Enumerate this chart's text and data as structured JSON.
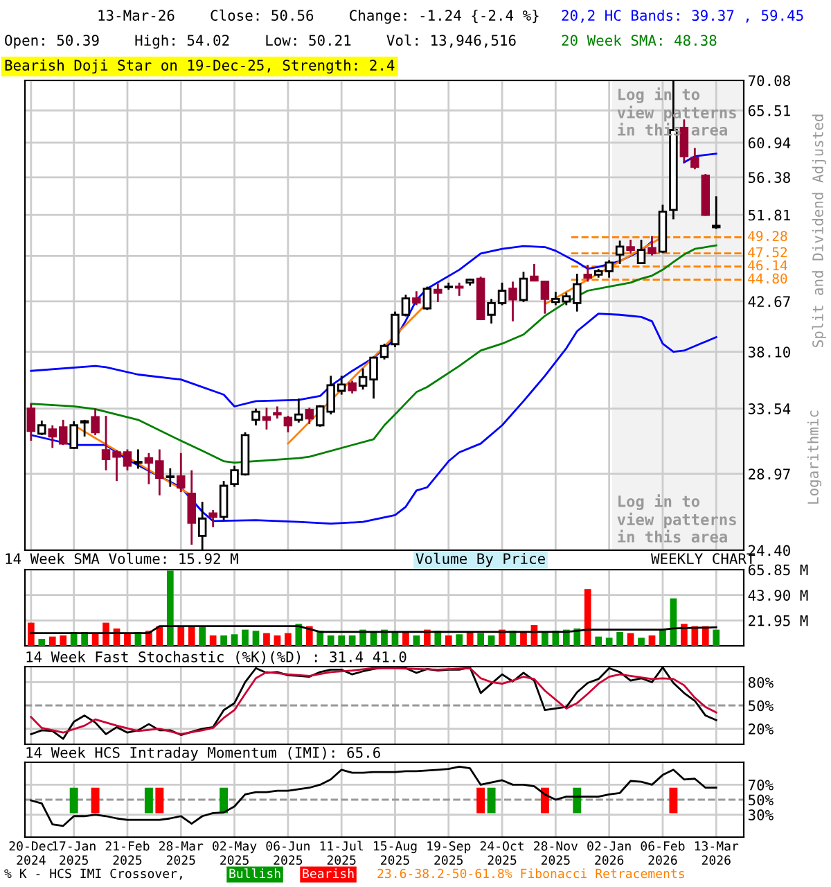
{
  "chart_data": [
    {
      "type": "candlestick",
      "title": "Bearish Doji Star on 19-Dec-25, Strength: 2.4",
      "ylabel": "Split and Dividend Adjusted",
      "x": [
        "2024-12-20",
        "2024-12-27",
        "2025-01-03",
        "2025-01-10",
        "2025-01-17",
        "2025-01-24",
        "2025-01-31",
        "2025-02-07",
        "2025-02-14",
        "2025-02-21",
        "2025-02-28",
        "2025-03-07",
        "2025-03-14",
        "2025-03-21",
        "2025-03-28",
        "2025-04-04",
        "2025-04-11",
        "2025-04-18",
        "2025-04-25",
        "2025-05-02",
        "2025-05-09",
        "2025-05-16",
        "2025-05-23",
        "2025-05-30",
        "2025-06-06",
        "2025-06-13",
        "2025-06-20",
        "2025-06-27",
        "2025-07-04",
        "2025-07-11",
        "2025-07-18",
        "2025-07-25",
        "2025-08-01",
        "2025-08-08",
        "2025-08-15",
        "2025-08-22",
        "2025-08-29",
        "2025-09-05",
        "2025-09-12",
        "2025-09-19",
        "2025-09-26",
        "2025-10-03",
        "2025-10-10",
        "2025-10-17",
        "2025-10-24",
        "2025-10-31",
        "2025-11-07",
        "2025-11-14",
        "2025-11-21",
        "2025-11-28",
        "2025-12-05",
        "2025-12-12",
        "2025-12-19",
        "2025-12-26",
        "2026-01-02",
        "2026-01-09",
        "2026-01-16",
        "2026-01-23",
        "2026-01-30",
        "2026-02-06",
        "2026-02-13",
        "2026-02-20",
        "2026-02-27",
        "2026-03-06",
        "2026-03-13"
      ],
      "ohlc": [
        [
          33.54,
          33.9,
          31.2,
          31.9
        ],
        [
          31.7,
          32.65,
          31.6,
          32.3
        ],
        [
          32.0,
          32.3,
          30.7,
          31.5
        ],
        [
          32.15,
          32.7,
          30.9,
          31.0
        ],
        [
          30.7,
          32.6,
          30.65,
          32.3
        ],
        [
          32.5,
          32.7,
          31.5,
          32.6
        ],
        [
          32.9,
          33.54,
          31.6,
          31.8
        ],
        [
          30.55,
          33.0,
          29.2,
          29.94
        ],
        [
          30.4,
          30.55,
          28.5,
          30.1
        ],
        [
          30.4,
          30.6,
          29.2,
          29.5
        ],
        [
          29.7,
          30.6,
          29.3,
          29.75
        ],
        [
          30.0,
          30.35,
          28.3,
          29.7
        ],
        [
          29.8,
          30.6,
          27.6,
          28.7
        ],
        [
          28.75,
          29.33,
          28.13,
          28.8
        ],
        [
          28.8,
          30.35,
          27.8,
          28.1
        ],
        [
          27.7,
          29.2,
          24.7,
          25.95
        ],
        [
          25.2,
          27.2,
          24.4,
          26.2
        ],
        [
          26.5,
          26.7,
          25.7,
          26.3
        ],
        [
          26.3,
          28.5,
          26.1,
          28.2
        ],
        [
          28.3,
          29.5,
          28.13,
          29.2
        ],
        [
          28.93,
          31.8,
          28.85,
          31.6
        ],
        [
          32.7,
          33.54,
          32.3,
          33.3
        ],
        [
          32.9,
          33.6,
          32.0,
          32.7
        ],
        [
          33.2,
          33.7,
          32.8,
          33.1
        ],
        [
          32.85,
          33.0,
          31.8,
          32.3
        ],
        [
          32.7,
          34.3,
          32.5,
          33.1
        ],
        [
          33.45,
          33.6,
          32.4,
          32.8
        ],
        [
          32.3,
          33.8,
          32.2,
          33.7
        ],
        [
          33.3,
          36.1,
          33.1,
          35.35
        ],
        [
          34.9,
          36.1,
          34.6,
          35.4
        ],
        [
          35.5,
          35.7,
          34.7,
          34.95
        ],
        [
          35.3,
          36.7,
          35.0,
          36.0
        ],
        [
          35.8,
          37.7,
          34.3,
          37.6
        ],
        [
          37.65,
          38.8,
          37.45,
          38.6
        ],
        [
          38.75,
          41.7,
          38.5,
          41.4
        ],
        [
          41.4,
          43.3,
          41.25,
          42.95
        ],
        [
          42.95,
          43.65,
          42.3,
          42.55
        ],
        [
          42.0,
          44.1,
          41.85,
          43.9
        ],
        [
          43.8,
          44.4,
          42.6,
          43.5
        ],
        [
          44.05,
          44.5,
          43.8,
          44.1
        ],
        [
          44.1,
          44.5,
          43.2,
          44.0
        ],
        [
          44.5,
          44.9,
          44.2,
          44.8
        ],
        [
          44.9,
          45.1,
          40.9,
          41.0
        ],
        [
          41.4,
          42.9,
          40.6,
          42.5
        ],
        [
          42.5,
          44.5,
          42.3,
          43.7
        ],
        [
          43.9,
          44.6,
          40.8,
          42.85
        ],
        [
          42.8,
          45.6,
          42.6,
          44.9
        ],
        [
          45.1,
          46.4,
          44.7,
          44.7
        ],
        [
          44.6,
          44.7,
          41.5,
          42.9
        ],
        [
          42.6,
          43.6,
          42.3,
          42.9
        ],
        [
          42.65,
          43.5,
          42.3,
          43.15
        ],
        [
          42.5,
          45.4,
          41.7,
          44.35
        ],
        [
          45.3,
          46.3,
          44.6,
          45.0
        ],
        [
          45.3,
          45.9,
          45.0,
          45.65
        ],
        [
          45.65,
          46.8,
          45.0,
          46.55
        ],
        [
          47.4,
          48.9,
          46.4,
          48.25
        ],
        [
          48.2,
          49.0,
          47.5,
          47.9
        ],
        [
          46.5,
          49.0,
          46.4,
          47.9
        ],
        [
          48.1,
          49.4,
          47.3,
          47.55
        ],
        [
          47.7,
          53.0,
          47.55,
          52.2
        ],
        [
          52.4,
          70.0,
          51.3,
          62.7
        ],
        [
          63.0,
          64.2,
          58.3,
          59.1
        ],
        [
          58.9,
          60.2,
          57.4,
          57.7
        ],
        [
          56.6,
          56.8,
          51.7,
          51.8
        ],
        [
          50.39,
          54.02,
          50.21,
          50.56
        ]
      ],
      "colors": [
        "#990033",
        "#ffffff",
        "#990033",
        "#990033",
        "#ffffff",
        "#ffffff",
        "#990033",
        "#990033",
        "#990033",
        "#990033",
        "#ffffff",
        "#990033",
        "#990033",
        "#ffffff",
        "#990033",
        "#990033",
        "#ffffff",
        "#990033",
        "#ffffff",
        "#ffffff",
        "#ffffff",
        "#ffffff",
        "#990033",
        "#990033",
        "#990033",
        "#ffffff",
        "#990033",
        "#ffffff",
        "#ffffff",
        "#ffffff",
        "#990033",
        "#ffffff",
        "#ffffff",
        "#ffffff",
        "#ffffff",
        "#ffffff",
        "#990033",
        "#ffffff",
        "#990033",
        "#ffffff",
        "#990033",
        "#ffffff",
        "#990033",
        "#ffffff",
        "#ffffff",
        "#990033",
        "#ffffff",
        "#990033",
        "#990033",
        "#ffffff",
        "#ffffff",
        "#ffffff",
        "#990033",
        "#ffffff",
        "#ffffff",
        "#ffffff",
        "#990033",
        "#ffffff",
        "#990033",
        "#ffffff",
        "#ffffff",
        "#990033",
        "#990033",
        "#990033",
        "#ffffff"
      ],
      "series": [
        {
          "type": "line",
          "name": "20,2 HC Bands: 39.37 , 59.45",
          "color": "#0000ff",
          "x": [
            "2024-12-20",
            "2025-01-31",
            "2025-02-07",
            "2025-02-28",
            "2025-03-28",
            "2025-04-25",
            "2025-05-02",
            "2025-05-16",
            "2025-06-13",
            "2025-06-27",
            "2025-07-04",
            "2025-07-18",
            "2025-08-01",
            "2025-08-15",
            "2025-08-22",
            "2025-08-29",
            "2025-09-05",
            "2025-09-26",
            "2025-10-10",
            "2025-10-24",
            "2025-11-07",
            "2025-11-21",
            "2025-11-28",
            "2025-12-12",
            "2025-12-19",
            "2025-12-26",
            "2026-01-09",
            "2026-01-23",
            "2026-01-30",
            "2026-02-06",
            "2026-02-13",
            "2026-02-20",
            "2026-02-27",
            "2026-03-13"
          ],
          "values": [
            36.5,
            36.9,
            36.8,
            36.2,
            35.8,
            34.6,
            33.7,
            34.1,
            34.2,
            34.5,
            35.3,
            36.5,
            37.6,
            39.2,
            40.85,
            42.8,
            43.9,
            45.8,
            47.5,
            48.0,
            48.3,
            48.2,
            47.8,
            46.6,
            45.9,
            46.1,
            46.7,
            47.8,
            48.8,
            null,
            null,
            58.3,
            59.1,
            59.45
          ]
        },
        {
          "type": "line",
          "color": "#0000ff",
          "x": [
            "2024-12-20",
            "2025-01-17",
            "2025-02-07",
            "2025-02-21",
            "2025-03-14",
            "2025-03-28",
            "2025-04-11",
            "2025-04-18",
            "2025-05-16",
            "2025-06-13",
            "2025-07-04",
            "2025-07-25",
            "2025-08-15",
            "2025-08-22",
            "2025-08-29",
            "2025-09-05",
            "2025-09-19",
            "2025-09-26",
            "2025-10-10",
            "2025-10-24",
            "2025-11-07",
            "2025-11-21",
            "2025-12-05",
            "2025-12-12",
            "2025-12-26",
            "2026-01-09",
            "2026-01-23",
            "2026-01-30",
            "2026-02-06",
            "2026-02-13",
            "2026-02-20",
            "2026-03-13"
          ],
          "values": [
            31.6,
            30.9,
            30.9,
            29.9,
            28.8,
            28.1,
            26.6,
            26.05,
            26.1,
            26.0,
            25.9,
            26.0,
            26.4,
            26.9,
            27.9,
            28.1,
            29.8,
            30.4,
            31.0,
            32.3,
            34.1,
            36.1,
            38.4,
            39.9,
            41.5,
            41.4,
            41.2,
            40.8,
            38.8,
            38.1,
            38.2,
            39.37
          ]
        },
        {
          "type": "line",
          "name": "20 Week SMA: 48.38",
          "color": "#008000",
          "x": [
            "2024-12-20",
            "2025-01-17",
            "2025-01-31",
            "2025-02-28",
            "2025-03-28",
            "2025-04-11",
            "2025-04-25",
            "2025-05-02",
            "2025-06-13",
            "2025-06-20",
            "2025-07-18",
            "2025-08-01",
            "2025-08-08",
            "2025-08-15",
            "2025-08-29",
            "2025-09-05",
            "2025-09-26",
            "2025-10-10",
            "2025-10-24",
            "2025-11-07",
            "2025-11-21",
            "2025-12-05",
            "2025-12-19",
            "2026-01-02",
            "2026-01-16",
            "2026-01-23",
            "2026-01-30",
            "2026-02-06",
            "2026-02-13",
            "2026-02-20",
            "2026-02-27",
            "2026-03-13"
          ],
          "values": [
            33.9,
            33.7,
            33.5,
            32.7,
            31.2,
            30.5,
            29.8,
            29.7,
            30.0,
            30.1,
            30.9,
            31.3,
            32.3,
            33.1,
            34.8,
            35.2,
            36.9,
            38.2,
            38.8,
            39.6,
            41.3,
            42.6,
            43.7,
            44.1,
            44.5,
            44.9,
            45.2,
            45.8,
            46.6,
            47.4,
            48.0,
            48.38
          ]
        },
        {
          "type": "line",
          "color": "#ff8000",
          "x": [
            "2025-01-17",
            "2025-04-04"
          ],
          "values": [
            32.3,
            27.6
          ]
        },
        {
          "type": "line",
          "color": "#ff8000",
          "x": [
            "2025-06-06",
            "2025-09-05"
          ],
          "values": [
            31.0,
            42.5
          ]
        },
        {
          "type": "line",
          "color": "#ff8000",
          "x": [
            "2025-11-21",
            "2026-02-06"
          ],
          "values": [
            42.4,
            49.3
          ]
        }
      ],
      "log": true,
      "xlim": [
        "2024-12-16",
        "2026-03-31"
      ],
      "ylim": [
        24.4,
        70.08
      ],
      "xticks": [
        {
          "value": "2024-12-20",
          "label": null
        },
        {
          "value": "2025-01-17",
          "label": null
        },
        {
          "value": "2025-02-21",
          "label": null
        },
        {
          "value": "2025-03-28",
          "label": null
        },
        {
          "value": "2025-05-02",
          "label": null
        },
        {
          "value": "2025-06-06",
          "label": null
        },
        {
          "value": "2025-07-11",
          "label": null
        },
        {
          "value": "2025-08-15",
          "label": null
        },
        {
          "value": "2025-09-19",
          "label": null
        },
        {
          "value": "2025-10-24",
          "label": null
        },
        {
          "value": "2025-11-28",
          "label": null
        },
        {
          "value": "2026-01-02",
          "label": null
        },
        {
          "value": "2026-02-06",
          "label": null
        },
        {
          "value": "2026-03-13",
          "label": null
        }
      ],
      "yticks": [
        {
          "value": 24.4,
          "label": "24.40"
        },
        28.97,
        33.54,
        {
          "value": 38.1,
          "label": "38.10"
        },
        42.67,
        {
          "value": 47.24,
          "label": null
        },
        51.81,
        56.38,
        60.94,
        65.51,
        70.08
      ],
      "tick_labels": "y",
      "grid": true,
      "ref_lines": [
        {
          "axis": "y",
          "value": 49.28,
          "label": "49.28",
          "color": "#ff8000",
          "line_style": "dashed"
        },
        {
          "axis": "y",
          "value": 47.52,
          "label": "47.52",
          "color": "#ff8000",
          "line_style": "dashed"
        },
        {
          "axis": "y",
          "value": 46.14,
          "label": "46.14",
          "color": "#ff8000",
          "line_style": "dashed"
        },
        {
          "axis": "y",
          "value": 44.8,
          "label": "44.80",
          "color": "#ff8000",
          "line_style": "dashed"
        }
      ],
      "bands": [
        {
          "axis": "x",
          "from": "2026-01-04",
          "to": "2026-03-31",
          "label": "Log in to\nview patterns\nin this area",
          "color": "#f2f2f2"
        }
      ],
      "annotations": [
        "13-Mar-26    Close: 50.56    Change: -1.24 {-2.4 %}",
        "Open: 50.39    High: 54.02    Low: 50.21    Vol: 13,946,516",
        "Logarithmic",
        "23.6-38.2-50-61.8% Fibonacci Retracements"
      ]
    },
    {
      "type": "bar",
      "x": [
        "2024-12-20",
        "2024-12-27",
        "2025-01-03",
        "2025-01-10",
        "2025-01-17",
        "2025-01-24",
        "2025-01-31",
        "2025-02-07",
        "2025-02-14",
        "2025-02-21",
        "2025-02-28",
        "2025-03-07",
        "2025-03-14",
        "2025-03-21",
        "2025-03-28",
        "2025-04-04",
        "2025-04-11",
        "2025-04-18",
        "2025-04-25",
        "2025-05-02",
        "2025-05-09",
        "2025-05-16",
        "2025-05-23",
        "2025-05-30",
        "2025-06-06",
        "2025-06-13",
        "2025-06-20",
        "2025-06-27",
        "2025-07-04",
        "2025-07-11",
        "2025-07-18",
        "2025-07-25",
        "2025-08-01",
        "2025-08-08",
        "2025-08-15",
        "2025-08-22",
        "2025-08-29",
        "2025-09-05",
        "2025-09-12",
        "2025-09-19",
        "2025-09-26",
        "2025-10-03",
        "2025-10-10",
        "2025-10-17",
        "2025-10-24",
        "2025-10-31",
        "2025-11-07",
        "2025-11-14",
        "2025-11-21",
        "2025-11-28",
        "2025-12-05",
        "2025-12-12",
        "2025-12-19",
        "2025-12-26",
        "2026-01-02",
        "2026-01-09",
        "2026-01-16",
        "2026-01-23",
        "2026-01-30",
        "2026-02-06",
        "2026-02-13",
        "2026-02-20",
        "2026-02-27",
        "2026-03-06",
        "2026-03-13"
      ],
      "values": [
        20,
        6,
        8,
        9,
        12,
        12,
        11,
        20,
        15,
        11,
        12,
        13,
        17,
        65,
        17,
        17,
        17,
        9,
        9,
        10,
        14,
        13,
        11,
        9,
        11,
        19,
        17,
        13,
        9,
        9,
        9,
        14,
        12,
        14,
        12,
        12,
        9,
        14,
        13,
        9,
        10,
        12,
        11,
        9,
        14,
        13,
        12,
        18,
        12,
        13,
        14,
        15,
        49,
        8,
        7,
        12,
        11,
        7,
        9,
        14,
        41,
        19,
        17,
        17,
        14
      ],
      "colors": [
        "#ff0000",
        "#009900",
        "#ff0000",
        "#ff0000",
        "#009900",
        "#009900",
        "#ff0000",
        "#ff0000",
        "#ff0000",
        "#ff0000",
        "#009900",
        "#ff0000",
        "#ff0000",
        "#009900",
        "#ff0000",
        "#ff0000",
        "#009900",
        "#ff0000",
        "#009900",
        "#009900",
        "#009900",
        "#009900",
        "#ff0000",
        "#ff0000",
        "#ff0000",
        "#009900",
        "#ff0000",
        "#009900",
        "#009900",
        "#009900",
        "#009900",
        "#009900",
        "#009900",
        "#009900",
        "#009900",
        "#ff0000",
        "#009900",
        "#ff0000",
        "#009900",
        "#ff0000",
        "#009900",
        "#ff0000",
        "#009900",
        "#009900",
        "#ff0000",
        "#009900",
        "#ff0000",
        "#ff0000",
        "#009900",
        "#009900",
        "#009900",
        "#009900",
        "#ff0000",
        "#009900",
        "#009900",
        "#009900",
        "#ff0000",
        "#009900",
        "#ff0000",
        "#009900",
        "#009900",
        "#ff0000",
        "#ff0000",
        "#ff0000",
        "#009900"
      ],
      "series": [
        {
          "type": "line",
          "name": "14 Week SMA Volume: 15.92 M",
          "color": "#000000",
          "x": [
            "2024-12-20",
            "2025-03-07",
            "2025-03-14",
            "2025-04-11",
            "2025-06-06",
            "2025-06-13",
            "2025-06-27",
            "2025-12-05",
            "2025-12-12",
            "2025-12-19",
            "2026-02-06",
            "2026-02-13",
            "2026-03-13"
          ],
          "values": [
            11,
            11,
            17,
            17,
            17,
            17,
            12,
            12,
            13,
            14,
            14,
            15,
            16
          ]
        }
      ],
      "xlim": [
        "2024-12-16",
        "2026-03-31"
      ],
      "ylim": [
        0,
        65.85
      ],
      "xticks": [
        {
          "value": "2024-12-20",
          "label": null
        },
        {
          "value": "2025-01-17",
          "label": null
        },
        {
          "value": "2025-02-21",
          "label": null
        },
        {
          "value": "2025-03-28",
          "label": null
        },
        {
          "value": "2025-05-02",
          "label": null
        },
        {
          "value": "2025-06-06",
          "label": null
        },
        {
          "value": "2025-07-11",
          "label": null
        },
        {
          "value": "2025-08-15",
          "label": null
        },
        {
          "value": "2025-09-19",
          "label": null
        },
        {
          "value": "2025-10-24",
          "label": null
        },
        {
          "value": "2025-11-28",
          "label": null
        },
        {
          "value": "2026-01-02",
          "label": null
        },
        {
          "value": "2026-02-06",
          "label": null
        },
        {
          "value": "2026-03-13",
          "label": null
        }
      ],
      "yticks": [
        {
          "value": 21.95,
          "label": "21.95 M"
        },
        {
          "value": 43.9,
          "label": "43.90 M"
        },
        {
          "value": 65.85,
          "label": "65.85 M"
        }
      ],
      "tick_labels": "y",
      "grid": true,
      "annotations": [
        "Volume By Price",
        "WEEKLY CHART"
      ]
    },
    {
      "type": "line",
      "title": "14 Week Fast Stochastic (%K)(%D) : 31.4 41.0",
      "x": [
        "2024-12-20",
        "2024-12-27",
        "2025-01-03",
        "2025-01-10",
        "2025-01-17",
        "2025-01-24",
        "2025-01-31",
        "2025-02-07",
        "2025-02-14",
        "2025-02-21",
        "2025-02-28",
        "2025-03-07",
        "2025-03-14",
        "2025-03-21",
        "2025-03-28",
        "2025-04-04",
        "2025-04-11",
        "2025-04-18",
        "2025-04-25",
        "2025-05-02",
        "2025-05-09",
        "2025-05-16",
        "2025-05-23",
        "2025-05-30",
        "2025-06-06",
        "2025-06-13",
        "2025-06-20",
        "2025-06-27",
        "2025-07-04",
        "2025-07-11",
        "2025-07-18",
        "2025-07-25",
        "2025-08-01",
        "2025-08-08",
        "2025-08-15",
        "2025-08-22",
        "2025-08-29",
        "2025-09-05",
        "2025-09-12",
        "2025-09-19",
        "2025-09-26",
        "2025-10-03",
        "2025-10-10",
        "2025-10-17",
        "2025-10-24",
        "2025-10-31",
        "2025-11-07",
        "2025-11-14",
        "2025-11-21",
        "2025-11-28",
        "2025-12-05",
        "2025-12-12",
        "2025-12-19",
        "2025-12-26",
        "2026-01-02",
        "2026-01-09",
        "2026-01-16",
        "2026-01-23",
        "2026-01-30",
        "2026-02-06",
        "2026-02-13",
        "2026-02-20",
        "2026-02-27",
        "2026-03-06",
        "2026-03-13"
      ],
      "series": [
        {
          "color": "#000000",
          "values": [
            13,
            18,
            17,
            7,
            29,
            37,
            28,
            13,
            22,
            15,
            18,
            26,
            18,
            18,
            12,
            16,
            20,
            22,
            44,
            53,
            80,
            98,
            92,
            93,
            89,
            88,
            87,
            93,
            96,
            96,
            90,
            94,
            97,
            99,
            99,
            98,
            92,
            97,
            95,
            96,
            96,
            99,
            66,
            78,
            90,
            81,
            92,
            82,
            44,
            46,
            48,
            67,
            79,
            84,
            98,
            93,
            82,
            85,
            80,
            99,
            79,
            66,
            56,
            37,
            31
          ]
        },
        {
          "color": "#cc0033",
          "x": [
            "2024-12-20",
            "2024-12-27",
            "2025-01-10",
            "2025-01-24",
            "2025-01-31",
            "2025-02-14",
            "2025-02-28",
            "2025-03-14",
            "2025-03-28",
            "2025-04-11",
            "2025-04-18",
            "2025-04-25",
            "2025-05-02",
            "2025-05-09",
            "2025-05-16",
            "2025-05-23",
            "2025-06-06",
            "2025-06-20",
            "2025-07-04",
            "2025-07-18",
            "2025-08-01",
            "2025-08-15",
            "2025-08-29",
            "2025-09-12",
            "2025-10-03",
            "2025-10-10",
            "2025-10-17",
            "2025-10-24",
            "2025-10-31",
            "2025-11-07",
            "2025-11-14",
            "2025-11-21",
            "2025-12-05",
            "2025-12-12",
            "2025-12-19",
            "2025-12-26",
            "2026-01-02",
            "2026-01-09",
            "2026-01-16",
            "2026-01-30",
            "2026-02-06",
            "2026-02-13",
            "2026-02-20",
            "2026-02-27",
            "2026-03-06",
            "2026-03-13"
          ],
          "values": [
            35,
            21,
            15,
            24,
            32,
            24,
            17,
            20,
            13,
            18,
            21,
            34,
            44,
            65,
            85,
            93,
            90,
            88,
            93,
            95,
            98,
            98,
            97,
            96,
            98,
            85,
            80,
            78,
            82,
            87,
            84,
            69,
            46,
            53,
            65,
            78,
            87,
            90,
            88,
            84,
            85,
            84,
            76,
            60,
            48,
            41.0
          ]
        }
      ],
      "xlim": [
        "2024-12-16",
        "2026-03-31"
      ],
      "ylim": [
        0,
        100
      ],
      "xticks": [
        {
          "value": "2024-12-20",
          "label": null
        },
        {
          "value": "2025-01-17",
          "label": null
        },
        {
          "value": "2025-02-21",
          "label": null
        },
        {
          "value": "2025-03-28",
          "label": null
        },
        {
          "value": "2025-05-02",
          "label": null
        },
        {
          "value": "2025-06-06",
          "label": null
        },
        {
          "value": "2025-07-11",
          "label": null
        },
        {
          "value": "2025-08-15",
          "label": null
        },
        {
          "value": "2025-09-19",
          "label": null
        },
        {
          "value": "2025-10-24",
          "label": null
        },
        {
          "value": "2025-11-28",
          "label": null
        },
        {
          "value": "2026-01-02",
          "label": null
        },
        {
          "value": "2026-02-06",
          "label": null
        },
        {
          "value": "2026-03-13",
          "label": null
        }
      ],
      "yticks": [
        {
          "value": 20,
          "label": "20%"
        },
        {
          "value": 50,
          "label": "50%"
        },
        {
          "value": 80,
          "label": "80%"
        }
      ],
      "tick_labels": "y",
      "grid": true,
      "ref_lines": [
        {
          "axis": "y",
          "value": 50,
          "color": "#999999",
          "line_style": "dashed"
        }
      ]
    },
    {
      "type": "line",
      "title": "14 Week HCS Intraday Momentum (IMI): 65.6",
      "x": [
        "2024-12-20",
        "2024-12-27",
        "2025-01-03",
        "2025-01-10",
        "2025-01-17",
        "2025-01-24",
        "2025-01-31",
        "2025-02-07",
        "2025-02-14",
        "2025-02-21",
        "2025-02-28",
        "2025-03-07",
        "2025-03-14",
        "2025-03-21",
        "2025-03-28",
        "2025-04-04",
        "2025-04-11",
        "2025-04-18",
        "2025-04-25",
        "2025-05-02",
        "2025-05-09",
        "2025-05-16",
        "2025-05-23",
        "2025-05-30",
        "2025-06-06",
        "2025-06-13",
        "2025-06-20",
        "2025-06-27",
        "2025-07-04",
        "2025-07-11",
        "2025-07-18",
        "2025-07-25",
        "2025-08-01",
        "2025-08-08",
        "2025-08-15",
        "2025-08-22",
        "2025-08-29",
        "2025-09-05",
        "2025-09-12",
        "2025-09-19",
        "2025-09-26",
        "2025-10-03",
        "2025-10-10",
        "2025-10-17",
        "2025-10-24",
        "2025-10-31",
        "2025-11-07",
        "2025-11-14",
        "2025-11-21",
        "2025-11-28",
        "2025-12-05",
        "2025-12-12",
        "2025-12-19",
        "2025-12-26",
        "2026-01-02",
        "2026-01-09",
        "2026-01-16",
        "2026-01-23",
        "2026-01-30",
        "2026-02-06",
        "2026-02-13",
        "2026-02-20",
        "2026-02-27",
        "2026-03-06",
        "2026-03-13"
      ],
      "series": [
        {
          "color": "#000000",
          "values": [
            49,
            45,
            17,
            15,
            28,
            28,
            30,
            28,
            25,
            23,
            23,
            23,
            23,
            25,
            28,
            18,
            28,
            32,
            33,
            41,
            57,
            60,
            60,
            62,
            62,
            64,
            66,
            70,
            77,
            90,
            86,
            86,
            87,
            87,
            87,
            88,
            88,
            89,
            90,
            91,
            94,
            92,
            70,
            73,
            76,
            70,
            70,
            68,
            57,
            50,
            54,
            54,
            54,
            54,
            57,
            59,
            75,
            74,
            70,
            83,
            90,
            77,
            78,
            66,
            66
          ]
        },
        {
          "type": "bar",
          "name": "Bullish",
          "color": "#009900",
          "x": [
            "2025-01-17",
            "2025-03-07",
            "2025-04-25",
            "2025-10-17",
            "2025-12-12"
          ],
          "base": [
            32,
            32,
            32,
            32,
            32
          ],
          "values": [
            34,
            34,
            34,
            34,
            34
          ]
        },
        {
          "type": "bar",
          "name": "Bearish",
          "color": "#ff0000",
          "x": [
            "2025-01-31",
            "2025-03-14",
            "2025-10-10",
            "2025-11-21",
            "2026-02-13"
          ],
          "base": [
            32,
            32,
            32,
            32,
            32
          ],
          "values": [
            34,
            34,
            34,
            34,
            34
          ]
        }
      ],
      "xlim": [
        "2024-12-16",
        "2026-03-31"
      ],
      "ylim": [
        0,
        100
      ],
      "xticks": [
        {
          "value": "2024-12-20",
          "label": "20-Dec\n2024"
        },
        {
          "value": "2025-01-17",
          "label": "17-Jan\n2025"
        },
        {
          "value": "2025-02-21",
          "label": "21-Feb\n2025"
        },
        {
          "value": "2025-03-28",
          "label": "28-Mar\n2025"
        },
        {
          "value": "2025-05-02",
          "label": "02-May\n2025"
        },
        {
          "value": "2025-06-06",
          "label": "06-Jun\n2025"
        },
        {
          "value": "2025-07-11",
          "label": "11-Jul\n2025"
        },
        {
          "value": "2025-08-15",
          "label": "15-Aug\n2025"
        },
        {
          "value": "2025-09-19",
          "label": "19-Sep\n2025"
        },
        {
          "value": "2025-10-24",
          "label": "24-Oct\n2025"
        },
        {
          "value": "2025-11-28",
          "label": "28-Nov\n2025"
        },
        {
          "value": "2026-01-02",
          "label": "02-Jan\n2026"
        },
        {
          "value": "2026-02-06",
          "label": "06-Feb\n2026"
        },
        {
          "value": "2026-03-13",
          "label": "13-Mar\n2026"
        }
      ],
      "yticks": [
        {
          "value": 30,
          "label": "30%"
        },
        {
          "value": 50,
          "label": "50%"
        },
        {
          "value": 70,
          "label": "70%"
        }
      ],
      "grid": true,
      "ref_lines": [
        {
          "axis": "y",
          "value": 50,
          "color": "#999999",
          "line_style": "dashed"
        }
      ],
      "annotations": [
        "% K - HCS IMI Crossover,"
      ]
    }
  ]
}
